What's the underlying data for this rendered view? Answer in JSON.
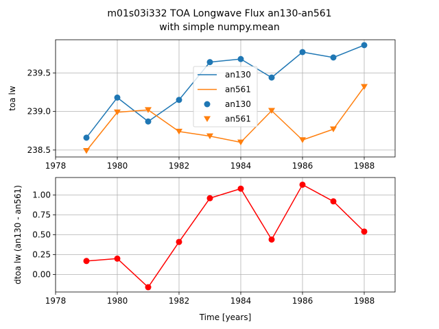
{
  "title_line1": "m01s03i332 TOA Longwave Flux an130-an561",
  "title_line2": "with simple numpy.mean",
  "chart_data": [
    {
      "type": "line",
      "ylabel": "toa lw",
      "xlabel": "",
      "xlim": [
        1978,
        1989
      ],
      "ylim": [
        238.41,
        239.93
      ],
      "xticks": [
        1978,
        1980,
        1982,
        1984,
        1986,
        1988
      ],
      "yticks": [
        238.5,
        239.0,
        239.5
      ],
      "ytick_labels": [
        "238.5",
        "239.0",
        "239.5"
      ],
      "grid": true,
      "legend_placement": "center",
      "x": [
        1979,
        1980,
        1981,
        1982,
        1983,
        1984,
        1985,
        1986,
        1987,
        1988
      ],
      "series": [
        {
          "name": "an130",
          "values": [
            238.66,
            239.18,
            238.87,
            239.15,
            239.64,
            239.68,
            239.44,
            239.77,
            239.7,
            239.86
          ],
          "color": "#1f77b4",
          "style": "line"
        },
        {
          "name": "an561",
          "values": [
            238.49,
            238.99,
            239.02,
            238.74,
            238.68,
            238.6,
            239.01,
            238.63,
            238.77,
            239.32
          ],
          "color": "#ff7f0e",
          "style": "line"
        },
        {
          "name": "an130",
          "values": [
            238.66,
            239.18,
            238.87,
            239.15,
            239.64,
            239.68,
            239.44,
            239.77,
            239.7,
            239.86
          ],
          "color": "#1f77b4",
          "style": "scatter",
          "marker": "circle"
        },
        {
          "name": "an561",
          "values": [
            238.49,
            238.99,
            239.02,
            238.74,
            238.68,
            238.6,
            239.01,
            238.63,
            238.77,
            239.32
          ],
          "color": "#ff7f0e",
          "style": "scatter",
          "marker": "triangle-down"
        }
      ]
    },
    {
      "type": "line",
      "ylabel": "dtoa lw (an130 - an561)",
      "xlabel": "Time [years]",
      "xlim": [
        1978,
        1989
      ],
      "ylim": [
        -0.22,
        1.22
      ],
      "xticks": [
        1978,
        1980,
        1982,
        1984,
        1986,
        1988
      ],
      "yticks": [
        0.0,
        0.25,
        0.5,
        0.75,
        1.0
      ],
      "ytick_labels": [
        "0.00",
        "0.25",
        "0.50",
        "0.75",
        "1.00"
      ],
      "grid": true,
      "x": [
        1979,
        1980,
        1981,
        1982,
        1983,
        1984,
        1985,
        1986,
        1987,
        1988
      ],
      "series": [
        {
          "values": [
            0.17,
            0.2,
            -0.16,
            0.41,
            0.96,
            1.08,
            0.44,
            1.13,
            0.92,
            0.54
          ],
          "color": "#ff0000",
          "marker": "circle"
        }
      ]
    }
  ]
}
